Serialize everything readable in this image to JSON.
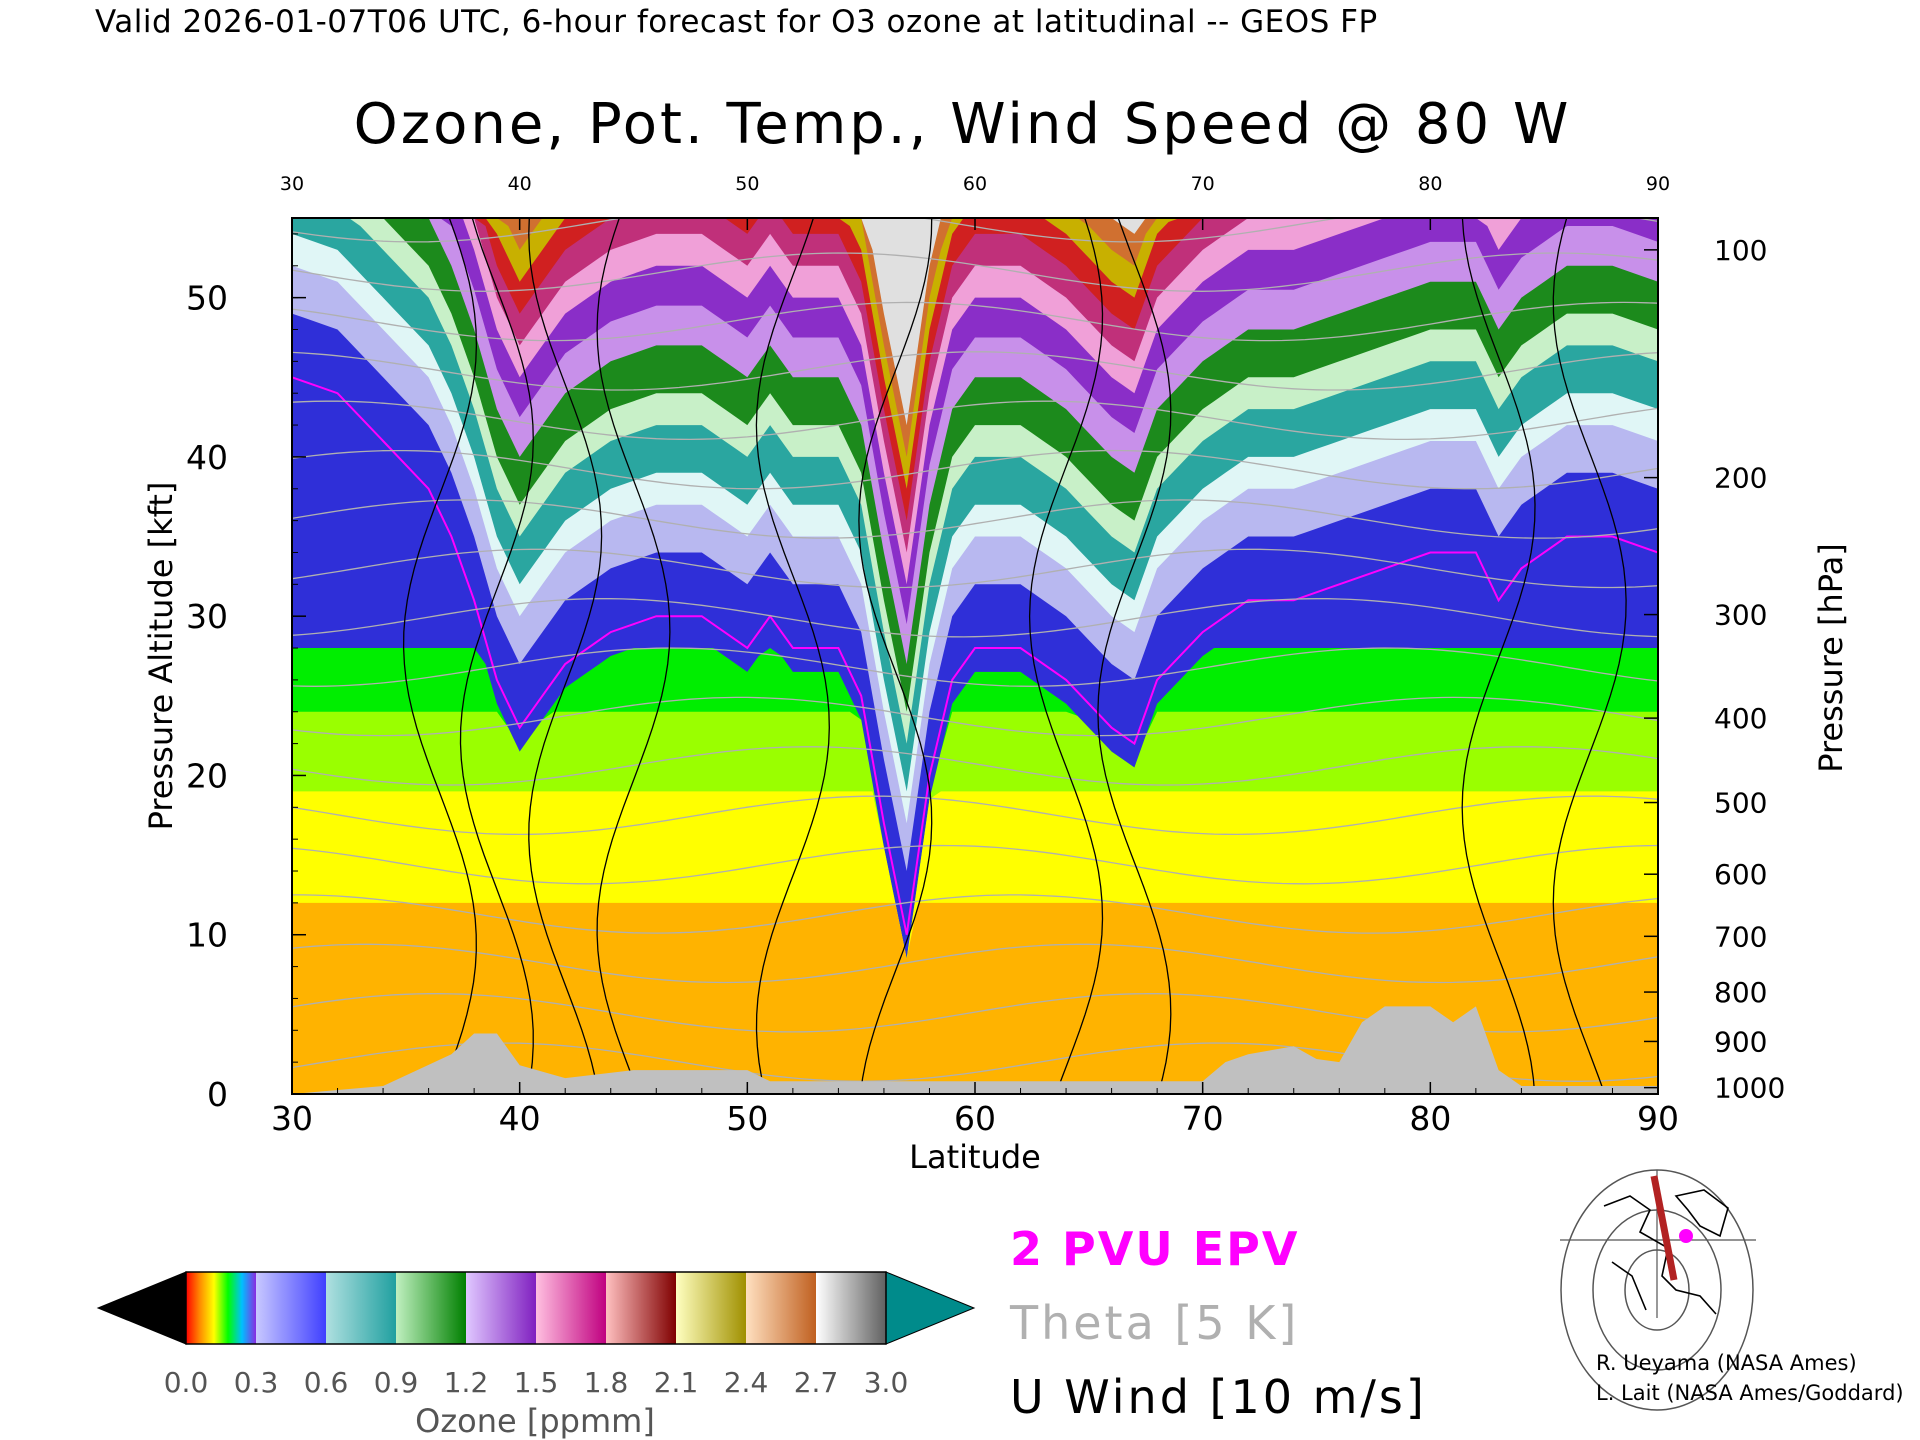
{
  "header": {
    "valid_line": "Valid 2026-01-07T06 UTC, 6-hour forecast for O3 ozone at latitudinal -- GEOS FP"
  },
  "chart_data": {
    "type": "heatmap",
    "title": "Ozone, Pot. Temp., Wind Speed @ 80 W",
    "xlabel": "Latitude",
    "ylabel": "Pressure Altitude [kft]",
    "y2label": "Pressure [hPa]",
    "xlim": [
      30,
      90
    ],
    "ylim": [
      0,
      55
    ],
    "x_ticks": [
      30,
      40,
      50,
      60,
      70,
      80,
      90
    ],
    "y_ticks": [
      0,
      10,
      20,
      30,
      40,
      50
    ],
    "pressure_ticks": [
      {
        "label": "100",
        "kft": 53.0
      },
      {
        "label": "200",
        "kft": 38.7
      },
      {
        "label": "300",
        "kft": 30.1
      },
      {
        "label": "400",
        "kft": 23.6
      },
      {
        "label": "500",
        "kft": 18.3
      },
      {
        "label": "600",
        "kft": 13.8
      },
      {
        "label": "700",
        "kft": 9.9
      },
      {
        "label": "800",
        "kft": 6.4
      },
      {
        "label": "900",
        "kft": 3.3
      },
      {
        "label": "1000",
        "kft": 0.4
      }
    ],
    "tropopause_kft": [
      [
        30,
        45
      ],
      [
        32,
        44
      ],
      [
        34,
        41
      ],
      [
        36,
        38
      ],
      [
        37,
        35
      ],
      [
        38,
        31
      ],
      [
        39,
        26
      ],
      [
        40,
        23
      ],
      [
        41,
        25
      ],
      [
        42,
        27
      ],
      [
        44,
        29
      ],
      [
        46,
        30
      ],
      [
        48,
        30
      ],
      [
        50,
        28
      ],
      [
        51,
        30
      ],
      [
        52,
        28
      ],
      [
        54,
        28
      ],
      [
        55,
        25
      ],
      [
        56,
        17
      ],
      [
        57,
        10
      ],
      [
        58,
        20
      ],
      [
        59,
        26
      ],
      [
        60,
        28
      ],
      [
        62,
        28
      ],
      [
        64,
        26
      ],
      [
        66,
        23
      ],
      [
        67,
        22
      ],
      [
        68,
        26
      ],
      [
        70,
        29
      ],
      [
        72,
        31
      ],
      [
        74,
        31
      ],
      [
        76,
        32
      ],
      [
        78,
        33
      ],
      [
        80,
        34
      ],
      [
        82,
        34
      ],
      [
        83,
        31
      ],
      [
        84,
        33
      ],
      [
        86,
        35
      ],
      [
        88,
        35
      ],
      [
        90,
        34
      ]
    ],
    "terrain_kft": [
      [
        30,
        0
      ],
      [
        34,
        0.5
      ],
      [
        37,
        2.5
      ],
      [
        38,
        3.8
      ],
      [
        39,
        3.8
      ],
      [
        40,
        1.8
      ],
      [
        42,
        1.0
      ],
      [
        45,
        1.5
      ],
      [
        50,
        1.5
      ],
      [
        51,
        0.8
      ],
      [
        60,
        0.8
      ],
      [
        70,
        0.8
      ],
      [
        71,
        2.0
      ],
      [
        72,
        2.5
      ],
      [
        74,
        3.0
      ],
      [
        75,
        2.2
      ],
      [
        76,
        2.0
      ],
      [
        77,
        4.5
      ],
      [
        78,
        5.5
      ],
      [
        80,
        5.5
      ],
      [
        81,
        4.5
      ],
      [
        82,
        5.5
      ],
      [
        83,
        1.5
      ],
      [
        84,
        0.5
      ],
      [
        90,
        0.5
      ]
    ],
    "ozone_colorbar": {
      "label": "Ozone [ppmm]",
      "min": 0.0,
      "max": 3.0,
      "tick_labels": [
        "0.0",
        "0.3",
        "0.6",
        "0.9",
        "1.2",
        "1.5",
        "1.8",
        "2.1",
        "2.4",
        "2.7",
        "3.0"
      ],
      "under_color": "#000000",
      "over_color": "#008b8b",
      "segments": [
        [
          "#ff0000",
          "#ff8c00",
          "#ffff00",
          "#00ff00",
          "#00bfff",
          "#8a2be2"
        ],
        [
          "#c8c8ff",
          "#4040ff"
        ],
        [
          "#b0e0e0",
          "#20a0a0"
        ],
        [
          "#c0f0c0",
          "#008000"
        ],
        [
          "#e0c8ff",
          "#8020c0"
        ],
        [
          "#ffc0e0",
          "#c00080"
        ],
        [
          "#ffc0c0",
          "#800000"
        ],
        [
          "#ffffc0",
          "#a09000"
        ],
        [
          "#ffe0c0",
          "#c06020"
        ],
        [
          "#ffffff",
          "#606060"
        ]
      ]
    },
    "lower_bands_kft": [
      {
        "ozone_ppmm": 0.3,
        "top_kft": 12,
        "color": "#ffb300"
      },
      {
        "ozone_ppmm": 0.25,
        "top_kft": 19,
        "color": "#ffff00"
      },
      {
        "ozone_ppmm": 0.2,
        "top_kft": 24,
        "color": "#9aff00"
      },
      {
        "ozone_ppmm": 0.15,
        "top_kft": 28,
        "color": "#00ee00"
      }
    ],
    "legend": {
      "epv": "2 PVU EPV",
      "theta": "Theta [5 K]",
      "wind": "U Wind [10 m/s]",
      "epv_color": "#ff00ff",
      "theta_color": "#b0b0b0",
      "wind_color": "#000000"
    },
    "grid": false
  },
  "credits": {
    "line1": "R. Ueyama (NASA Ames)",
    "line2": "L. Lait (NASA Ames/Goddard)"
  }
}
